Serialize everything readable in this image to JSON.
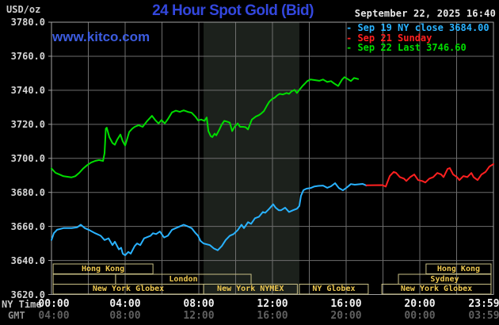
{
  "header": {
    "units": "USD/oz",
    "title": "24 Hour Spot Gold (Bid)",
    "datetime": "September 22, 2025 16:40",
    "watermark": "www.kitco.com"
  },
  "colors": {
    "sep19": "#29b2ff",
    "sep21": "#ff2020",
    "sep22": "#00dd00",
    "grid": "#6e6e6e",
    "plot_border": "#a2a2a2",
    "shade": "#1c211c",
    "session_border": "#c9c086",
    "session_text": "#eec84f",
    "title_blue": "#3347dd",
    "watermark_blue": "#3c5ce0"
  },
  "legend": {
    "items": [
      {
        "text": "- Sep 19 NY close 3684.00",
        "color": "#29b2ff"
      },
      {
        "text": "- Sep 21 Sunday",
        "color": "#ff2020"
      },
      {
        "text": "- Sep 22 Last 3746.60",
        "color": "#00dd00"
      }
    ]
  },
  "y_axis": {
    "ticks": [
      {
        "label": "3780.0",
        "value": 3780
      },
      {
        "label": "3760.0",
        "value": 3760
      },
      {
        "label": "3740.0",
        "value": 3740
      },
      {
        "label": "3720.0",
        "value": 3720
      },
      {
        "label": "3700.0",
        "value": 3700
      },
      {
        "label": "3680.0",
        "value": 3680
      },
      {
        "label": "3660.0",
        "value": 3660
      },
      {
        "label": "3640.0",
        "value": 3640
      },
      {
        "label": "3620.0",
        "value": 3620
      }
    ]
  },
  "x_axis": {
    "ny_label": "NY Time",
    "gmt_label": "GMT",
    "ticks": [
      {
        "hour": 0,
        "ny": "00:00",
        "gmt": "04:00"
      },
      {
        "hour": 4,
        "ny": "04:00",
        "gmt": "08:00"
      },
      {
        "hour": 8,
        "ny": "08:00",
        "gmt": "12:00"
      },
      {
        "hour": 12,
        "ny": "12:00",
        "gmt": "16:00"
      },
      {
        "hour": 16,
        "ny": "16:00",
        "gmt": "20:00"
      },
      {
        "hour": 20,
        "ny": "20:00",
        "gmt": "00:00"
      },
      {
        "hour": 24,
        "ny": "23:59",
        "gmt": "03:59"
      }
    ]
  },
  "sessions": {
    "rows": [
      [
        {
          "label": "Hong Kong",
          "from": 0.09,
          "to": 5.51
        },
        {
          "label": "Hong Kong",
          "from": 20.34,
          "to": 23.87
        }
      ],
      [
        {
          "label": "",
          "from": 0.09,
          "to": 3.48
        },
        {
          "label": "London",
          "from": 3.48,
          "to": 10.84
        },
        {
          "label": "Sydney",
          "from": 18.84,
          "to": 23.87
        }
      ],
      [
        {
          "label": "New York Globex",
          "from": 0.09,
          "to": 8.26
        },
        {
          "label": "New York NYMEX",
          "from": 8.26,
          "to": 13.35
        },
        {
          "label": "NY Globex",
          "from": 13.46,
          "to": 17.2
        },
        {
          "label": "New York Globex",
          "from": 17.94,
          "to": 23.87
        }
      ]
    ]
  },
  "chart_data": {
    "type": "line",
    "title": "24 Hour Spot Gold (Bid)",
    "xlabel": "NY Time (hours)",
    "ylabel": "USD/oz",
    "x_range": [
      0,
      24
    ],
    "ylim": [
      3620,
      3780
    ],
    "grid": true,
    "legend_position": "top-right",
    "prev_ny_close": 3684.0,
    "last": 3746.6,
    "highlight_band_hours": [
      8.26,
      13.46
    ],
    "series": [
      {
        "name": "Sep 19 NY close 3684.00",
        "color": "#29b2ff",
        "points": [
          [
            0,
            3652
          ],
          [
            0.13,
            3656
          ],
          [
            0.3,
            3658
          ],
          [
            0.65,
            3659
          ],
          [
            1.1,
            3659
          ],
          [
            1.4,
            3659.5
          ],
          [
            1.59,
            3661
          ],
          [
            1.81,
            3659
          ],
          [
            2.02,
            3658
          ],
          [
            2.37,
            3656
          ],
          [
            2.67,
            3654.5
          ],
          [
            2.88,
            3652
          ],
          [
            3.1,
            3653
          ],
          [
            3.31,
            3649
          ],
          [
            3.44,
            3651
          ],
          [
            3.66,
            3646.5
          ],
          [
            3.78,
            3647.5
          ],
          [
            3.87,
            3644
          ],
          [
            4.0,
            3643
          ],
          [
            4.17,
            3645
          ],
          [
            4.3,
            3644
          ],
          [
            4.52,
            3648.5
          ],
          [
            4.65,
            3650
          ],
          [
            4.82,
            3649
          ],
          [
            5.03,
            3653
          ],
          [
            5.38,
            3654.5
          ],
          [
            5.51,
            3656
          ],
          [
            5.68,
            3655.5
          ],
          [
            5.89,
            3657
          ],
          [
            6.11,
            3653.5
          ],
          [
            6.32,
            3654.5
          ],
          [
            6.54,
            3658
          ],
          [
            6.75,
            3659
          ],
          [
            6.97,
            3660
          ],
          [
            7.18,
            3661
          ],
          [
            7.4,
            3660
          ],
          [
            7.61,
            3659
          ],
          [
            7.83,
            3656
          ],
          [
            7.96,
            3654.5
          ],
          [
            8.09,
            3651.5
          ],
          [
            8.26,
            3650
          ],
          [
            8.6,
            3649
          ],
          [
            8.82,
            3647
          ],
          [
            9.03,
            3646
          ],
          [
            9.25,
            3648.5
          ],
          [
            9.46,
            3652
          ],
          [
            9.68,
            3654.5
          ],
          [
            9.89,
            3655.5
          ],
          [
            10.11,
            3657.8
          ],
          [
            10.32,
            3661
          ],
          [
            10.45,
            3659
          ],
          [
            10.67,
            3662.5
          ],
          [
            10.84,
            3661.5
          ],
          [
            11.05,
            3664.8
          ],
          [
            11.27,
            3665.7
          ],
          [
            11.48,
            3668.5
          ],
          [
            11.61,
            3668
          ],
          [
            11.83,
            3670.4
          ],
          [
            12.04,
            3673
          ],
          [
            12.17,
            3671
          ],
          [
            12.34,
            3669.5
          ],
          [
            12.47,
            3669.5
          ],
          [
            12.69,
            3671
          ],
          [
            12.9,
            3668.5
          ],
          [
            13.12,
            3669.5
          ],
          [
            13.33,
            3670.4
          ],
          [
            13.46,
            3672
          ],
          [
            13.55,
            3678
          ],
          [
            13.68,
            3681.3
          ],
          [
            13.85,
            3682.2
          ],
          [
            14.06,
            3682.5
          ],
          [
            14.28,
            3683.5
          ],
          [
            14.49,
            3683.8
          ],
          [
            14.75,
            3684
          ],
          [
            14.97,
            3682.7
          ],
          [
            15.18,
            3683.6
          ],
          [
            15.4,
            3685.4
          ],
          [
            15.61,
            3682.5
          ],
          [
            15.83,
            3681.2
          ],
          [
            16.04,
            3682.9
          ],
          [
            16.26,
            3684.9
          ],
          [
            16.47,
            3684.5
          ],
          [
            16.9,
            3685
          ],
          [
            17.1,
            3684
          ]
        ]
      },
      {
        "name": "Sep 21 Sunday",
        "color": "#ff2020",
        "points": [
          [
            17.1,
            3684.2
          ],
          [
            17.97,
            3684.3
          ],
          [
            18.15,
            3683.4
          ],
          [
            18.37,
            3689.6
          ],
          [
            18.58,
            3692
          ],
          [
            18.71,
            3691.5
          ],
          [
            18.92,
            3689
          ],
          [
            19.14,
            3688.1
          ],
          [
            19.27,
            3686.7
          ],
          [
            19.48,
            3689
          ],
          [
            19.7,
            3690.5
          ],
          [
            19.91,
            3687.2
          ],
          [
            20.13,
            3686.7
          ],
          [
            20.3,
            3685.8
          ],
          [
            20.52,
            3688.1
          ],
          [
            20.73,
            3689
          ],
          [
            20.95,
            3691.4
          ],
          [
            21.16,
            3690.5
          ],
          [
            21.29,
            3689
          ],
          [
            21.51,
            3693.8
          ],
          [
            21.63,
            3694.3
          ],
          [
            21.81,
            3690.5
          ],
          [
            22.02,
            3689
          ],
          [
            22.15,
            3687.2
          ],
          [
            22.37,
            3689.6
          ],
          [
            22.58,
            3689
          ],
          [
            22.8,
            3691.4
          ],
          [
            22.92,
            3689
          ],
          [
            23.14,
            3687.2
          ],
          [
            23.35,
            3690.5
          ],
          [
            23.57,
            3692
          ],
          [
            23.78,
            3695.2
          ],
          [
            24.0,
            3696.6
          ]
        ]
      },
      {
        "name": "Sep 22 Last 3746.60",
        "color": "#00dd00",
        "points": [
          [
            0,
            3694
          ],
          [
            0.22,
            3691.5
          ],
          [
            0.43,
            3690.5
          ],
          [
            0.65,
            3689.5
          ],
          [
            1.08,
            3688.8
          ],
          [
            1.29,
            3689.5
          ],
          [
            1.51,
            3691.5
          ],
          [
            1.72,
            3694
          ],
          [
            1.94,
            3696
          ],
          [
            2.15,
            3697.5
          ],
          [
            2.37,
            3698.5
          ],
          [
            2.58,
            3699
          ],
          [
            2.8,
            3698.5
          ],
          [
            2.88,
            3703
          ],
          [
            2.95,
            3717.5
          ],
          [
            3.0,
            3718
          ],
          [
            3.14,
            3712.5
          ],
          [
            3.31,
            3709
          ],
          [
            3.44,
            3708
          ],
          [
            3.57,
            3711
          ],
          [
            3.74,
            3714
          ],
          [
            3.87,
            3710
          ],
          [
            4.0,
            3707.5
          ],
          [
            4.1,
            3711
          ],
          [
            4.22,
            3715.5
          ],
          [
            4.39,
            3717.5
          ],
          [
            4.52,
            3718.5
          ],
          [
            4.73,
            3719.5
          ],
          [
            4.95,
            3718.5
          ],
          [
            5.16,
            3721.5
          ],
          [
            5.46,
            3725
          ],
          [
            5.63,
            3722.5
          ],
          [
            5.81,
            3720.5
          ],
          [
            5.98,
            3722.5
          ],
          [
            6.15,
            3720.5
          ],
          [
            6.32,
            3723
          ],
          [
            6.54,
            3727
          ],
          [
            6.75,
            3728
          ],
          [
            6.97,
            3727.3
          ],
          [
            7.18,
            3728.2
          ],
          [
            7.4,
            3727.3
          ],
          [
            7.61,
            3726.8
          ],
          [
            7.83,
            3724.4
          ],
          [
            7.96,
            3722.3
          ],
          [
            8.13,
            3722.8
          ],
          [
            8.3,
            3722
          ],
          [
            8.43,
            3724
          ],
          [
            8.52,
            3716
          ],
          [
            8.65,
            3713
          ],
          [
            8.73,
            3712.5
          ],
          [
            8.86,
            3714.5
          ],
          [
            8.95,
            3713.5
          ],
          [
            9.12,
            3717
          ],
          [
            9.25,
            3720
          ],
          [
            9.38,
            3722
          ],
          [
            9.55,
            3721.5
          ],
          [
            9.68,
            3721
          ],
          [
            9.81,
            3716
          ],
          [
            9.94,
            3718.5
          ],
          [
            10.11,
            3720.5
          ],
          [
            10.24,
            3718.5
          ],
          [
            10.41,
            3718.5
          ],
          [
            10.54,
            3718.3
          ],
          [
            10.67,
            3717
          ],
          [
            10.88,
            3722.8
          ],
          [
            11.1,
            3724.6
          ],
          [
            11.27,
            3725.4
          ],
          [
            11.4,
            3726.5
          ],
          [
            11.53,
            3727.7
          ],
          [
            11.7,
            3731
          ],
          [
            11.83,
            3733.3
          ],
          [
            11.96,
            3734.7
          ],
          [
            12.13,
            3735.7
          ],
          [
            12.26,
            3737
          ],
          [
            12.39,
            3737.9
          ],
          [
            12.56,
            3737.5
          ],
          [
            12.77,
            3738.4
          ],
          [
            12.9,
            3737.9
          ],
          [
            13.03,
            3739.3
          ],
          [
            13.2,
            3740.2
          ],
          [
            13.33,
            3738.4
          ],
          [
            13.46,
            3740.2
          ],
          [
            13.63,
            3742.5
          ],
          [
            13.76,
            3743.9
          ],
          [
            13.89,
            3745.4
          ],
          [
            14.06,
            3746.3
          ],
          [
            14.28,
            3746
          ],
          [
            14.54,
            3745.6
          ],
          [
            14.75,
            3746.3
          ],
          [
            14.97,
            3744.9
          ],
          [
            15.18,
            3745.4
          ],
          [
            15.35,
            3744
          ],
          [
            15.57,
            3742.5
          ],
          [
            15.78,
            3746.3
          ],
          [
            15.91,
            3747.7
          ],
          [
            16.13,
            3746.3
          ],
          [
            16.26,
            3745.4
          ],
          [
            16.43,
            3747.2
          ],
          [
            16.65,
            3746.6
          ]
        ]
      }
    ]
  }
}
